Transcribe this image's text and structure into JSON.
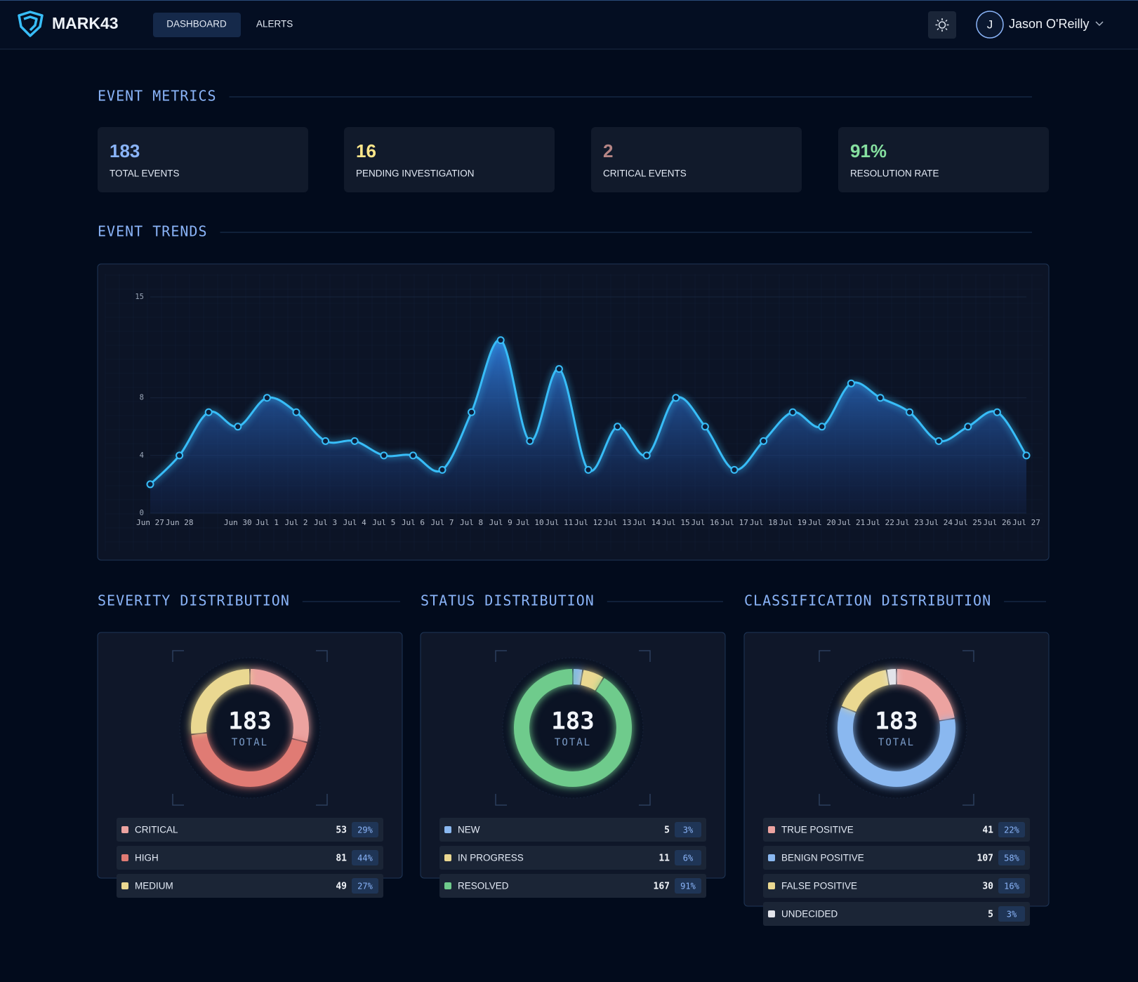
{
  "header": {
    "brand": "MARK43",
    "nav": [
      "DASHBOARD",
      "ALERTS"
    ],
    "user_initial": "J",
    "user_name": "Jason O'Reilly"
  },
  "metrics": {
    "title": "EVENT METRICS",
    "cards": [
      {
        "value": "183",
        "label": "TOTAL EVENTS",
        "color": "#8ab4f8"
      },
      {
        "value": "16",
        "label": "PENDING INVESTIGATION",
        "color": "#fde68a"
      },
      {
        "value": "2",
        "label": "CRITICAL EVENTS",
        "color": "#b58585"
      },
      {
        "value": "91%",
        "label": "RESOLUTION RATE",
        "color": "#86e0a0"
      }
    ]
  },
  "trends": {
    "title": "EVENT TRENDS",
    "chart": {
      "type": "line",
      "x": [
        "Jun 27",
        "Jun 28",
        null,
        "Jun 30",
        "Jul 1",
        "Jul 2",
        "Jul 3",
        "Jul 4",
        "Jul 5",
        "Jul 6",
        "Jul 7",
        "Jul 8",
        "Jul 9",
        "Jul 10",
        "Jul 11",
        "Jul 12",
        "Jul 13",
        "Jul 14",
        "Jul 15",
        "Jul 16",
        "Jul 17",
        "Jul 18",
        "Jul 19",
        "Jul 20",
        "Jul 21",
        "Jul 22",
        "Jul 23",
        "Jul 24",
        "Jul 25",
        "Jul 26",
        "Jul 27"
      ],
      "values": [
        2,
        4,
        7,
        6,
        8,
        7,
        5,
        5,
        4,
        4,
        3,
        7,
        12,
        5,
        10,
        3,
        6,
        4,
        8,
        6,
        3,
        5,
        7,
        6,
        9,
        8,
        7,
        5,
        6,
        7,
        4
      ],
      "ylim": [
        0,
        15
      ],
      "yticks": [
        0,
        4,
        8,
        15
      ],
      "grid": true,
      "color": "#38bdf8"
    }
  },
  "distributions": [
    {
      "title": "SEVERITY DISTRIBUTION",
      "type": "donut",
      "total": 183,
      "total_label": "TOTAL",
      "categories": [
        "CRITICAL",
        "HIGH",
        "MEDIUM"
      ],
      "values": [
        53,
        81,
        49
      ],
      "percent_labels": [
        "29%",
        "44%",
        "27%"
      ],
      "colors": [
        "#eca3a0",
        "#e07b74",
        "#ead891"
      ]
    },
    {
      "title": "STATUS DISTRIBUTION",
      "type": "donut",
      "total": 183,
      "total_label": "TOTAL",
      "categories": [
        "NEW",
        "IN PROGRESS",
        "RESOLVED"
      ],
      "values": [
        5,
        11,
        167
      ],
      "percent_labels": [
        "3%",
        "6%",
        "91%"
      ],
      "colors": [
        "#8ab8f0",
        "#ead891",
        "#6fcb8c"
      ]
    },
    {
      "title": "CLASSIFICATION DISTRIBUTION",
      "type": "donut",
      "total": 183,
      "total_label": "TOTAL",
      "categories": [
        "TRUE POSITIVE",
        "BENIGN POSITIVE",
        "FALSE POSITIVE",
        "UNDECIDED"
      ],
      "values": [
        41,
        107,
        30,
        5
      ],
      "percent_labels": [
        "22%",
        "58%",
        "16%",
        "3%"
      ],
      "colors": [
        "#eca3a0",
        "#8ab8f0",
        "#ead891",
        "#e2e4ea"
      ]
    }
  ]
}
